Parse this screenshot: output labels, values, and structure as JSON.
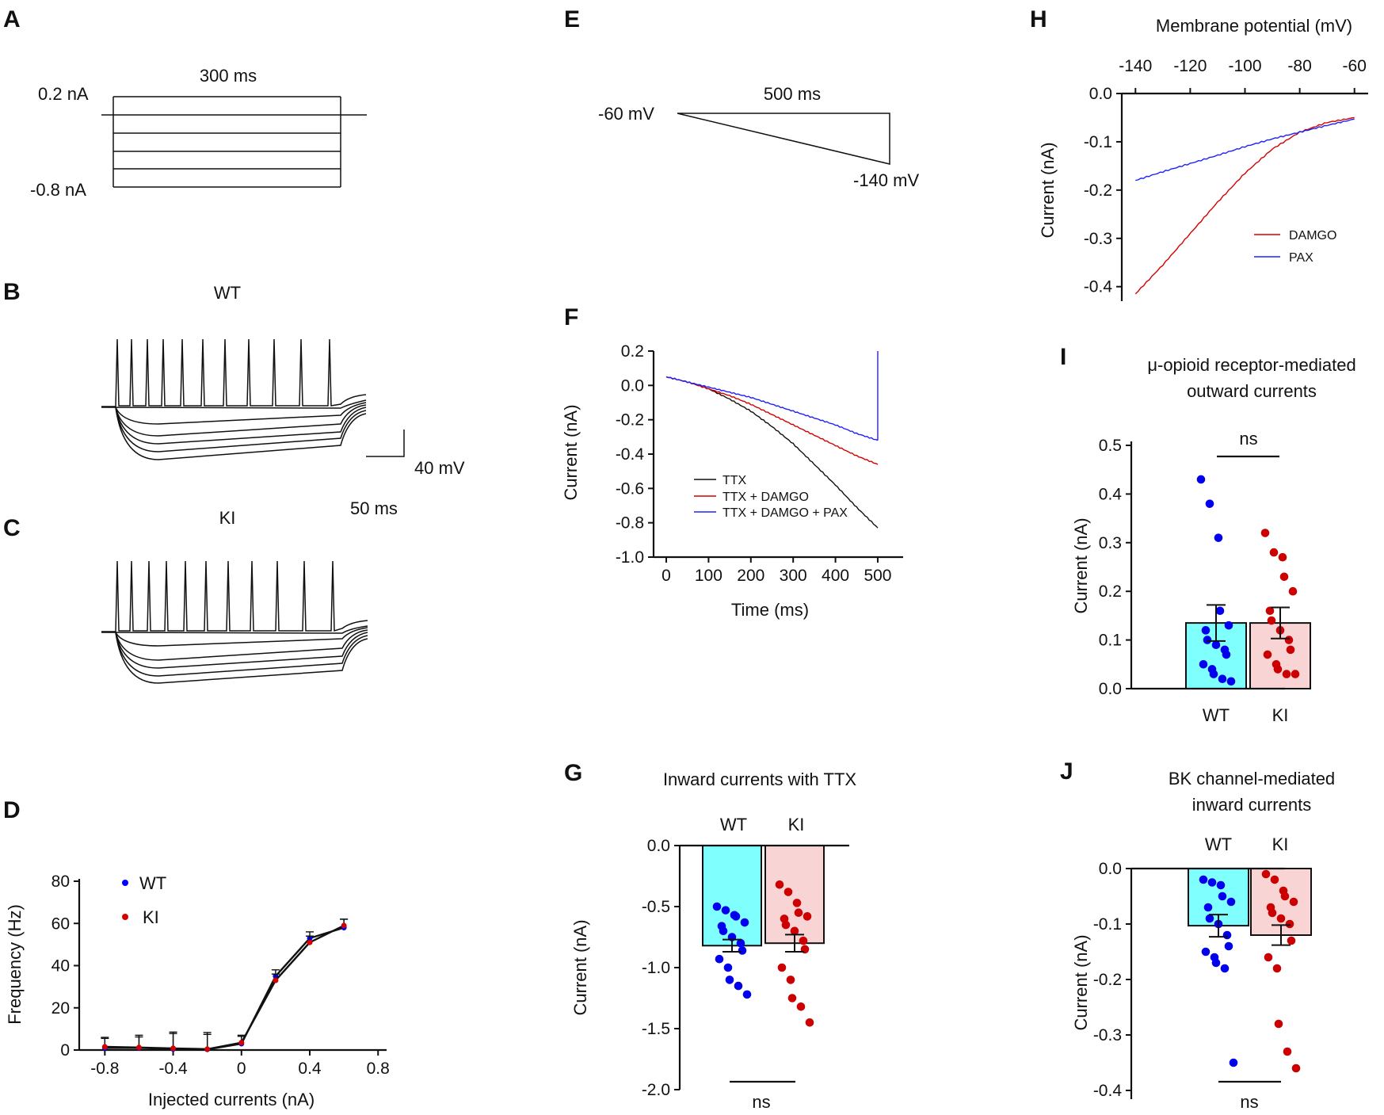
{
  "figure": {
    "panels": {
      "A": {
        "label": "A",
        "duration": "300 ms",
        "top_label": "0.2 nA",
        "bottom_label": "-0.8 nA"
      },
      "B": {
        "label": "B",
        "title": "WT"
      },
      "C": {
        "label": "C",
        "title": "KI"
      },
      "scalebar": {
        "v": "40 mV",
        "h": "50 ms"
      },
      "E": {
        "label": "E",
        "start": "-60 mV",
        "duration": "500 ms",
        "end": "-140 mV"
      },
      "D": {
        "label": "D"
      },
      "F": {
        "label": "F"
      },
      "G": {
        "label": "G"
      },
      "H": {
        "label": "H"
      },
      "I": {
        "label": "I"
      },
      "J": {
        "label": "J"
      }
    }
  },
  "chart_data": [
    {
      "id": "D",
      "type": "line",
      "xlabel": "Injected currents (nA)",
      "ylabel": "Frequency (Hz)",
      "xlim": [
        -0.95,
        0.85
      ],
      "ylim": [
        0,
        80
      ],
      "xticks": [
        -0.8,
        -0.4,
        0,
        0.4,
        0.8
      ],
      "xticklabels": [
        "-0.8",
        "-0.4",
        "0",
        "0.4",
        "0.8"
      ],
      "yticks": [
        0,
        20,
        40,
        60,
        80
      ],
      "yticklabels": [
        "0",
        "20",
        "40",
        "60",
        "80"
      ],
      "legend": [
        "WT",
        "KI"
      ],
      "series": [
        {
          "name": "WT",
          "color": "#0000ff",
          "x": [
            -0.8,
            -0.6,
            -0.4,
            -0.2,
            0,
            0.2,
            0.4,
            0.6
          ],
          "y": [
            1,
            1,
            0.5,
            0.3,
            3,
            35,
            53,
            58
          ],
          "err": [
            5,
            6,
            8,
            8,
            4,
            3,
            3,
            4
          ]
        },
        {
          "name": "KI",
          "color": "#d40000",
          "x": [
            -0.8,
            -0.6,
            -0.4,
            -0.2,
            0,
            0.2,
            0.4,
            0.6
          ],
          "y": [
            1.5,
            1.2,
            0.8,
            0.4,
            3.5,
            33,
            51,
            59
          ],
          "err": [
            4,
            5,
            7,
            7,
            3,
            3,
            3,
            3
          ]
        }
      ]
    },
    {
      "id": "F",
      "type": "line",
      "xlabel": "Time (ms)",
      "ylabel": "Current (nA)",
      "xlim": [
        -30,
        560
      ],
      "ylim": [
        -1.0,
        0.2
      ],
      "xticks": [
        0,
        100,
        200,
        300,
        400,
        500
      ],
      "xticklabels": [
        "0",
        "100",
        "200",
        "300",
        "400",
        "500"
      ],
      "yticks": [
        0.2,
        0.0,
        -0.2,
        -0.4,
        -0.6,
        -0.8,
        -1.0
      ],
      "yticklabels": [
        "0.2",
        "0.0",
        "-0.2",
        "-0.4",
        "-0.6",
        "-0.8",
        "-1.0"
      ],
      "series": [
        {
          "name": "TTX",
          "color": "#111111",
          "x": [
            0,
            50,
            100,
            150,
            200,
            250,
            300,
            350,
            400,
            450,
            500
          ],
          "y": [
            0.05,
            0.02,
            -0.02,
            -0.08,
            -0.15,
            -0.24,
            -0.34,
            -0.46,
            -0.58,
            -0.71,
            -0.83
          ]
        },
        {
          "name": "TTX + DAMGO",
          "color": "#d40000",
          "x": [
            0,
            50,
            100,
            150,
            200,
            250,
            300,
            350,
            400,
            450,
            500
          ],
          "y": [
            0.05,
            0.02,
            -0.02,
            -0.06,
            -0.11,
            -0.17,
            -0.23,
            -0.29,
            -0.35,
            -0.41,
            -0.46
          ]
        },
        {
          "name": "TTX + DAMGO + PAX",
          "color": "#2020ff",
          "x": [
            0,
            50,
            100,
            150,
            200,
            250,
            300,
            350,
            400,
            450,
            500
          ],
          "y": [
            0.05,
            0.02,
            -0.01,
            -0.04,
            -0.07,
            -0.11,
            -0.15,
            -0.19,
            -0.23,
            -0.28,
            -0.32
          ]
        }
      ]
    },
    {
      "id": "G",
      "type": "bar",
      "title": "Inward currents with TTX",
      "ylabel": "Current (nA)",
      "categories": [
        "WT",
        "KI"
      ],
      "values": [
        -0.82,
        -0.8
      ],
      "sem": [
        0.05,
        0.07
      ],
      "colors": [
        "#80ffff",
        "#f8d4d4"
      ],
      "dot_colors": [
        "#0000ee",
        "#cc0000"
      ],
      "ylim": [
        -2.0,
        0.0
      ],
      "yticks": [
        0.0,
        -0.5,
        -1.0,
        -1.5,
        -2.0
      ],
      "yticklabels": [
        "0.0",
        "-0.5",
        "-1.0",
        "-1.5",
        "-2.0"
      ],
      "points": [
        [
          -0.5,
          -0.53,
          -0.57,
          -0.58,
          -0.63,
          -0.66,
          -0.7,
          -0.75,
          -0.8,
          -0.86,
          -0.93,
          -1.0,
          -1.1,
          -1.15,
          -1.22
        ],
        [
          -0.32,
          -0.38,
          -0.47,
          -0.55,
          -0.58,
          -0.6,
          -0.65,
          -0.7,
          -0.78,
          -0.85,
          -1.0,
          -1.1,
          -1.25,
          -1.32,
          -1.45
        ]
      ],
      "significance": "ns"
    },
    {
      "id": "H",
      "type": "line",
      "xlabel": "Membrane potential (mV)",
      "ylabel": "Current (nA)",
      "xlim": [
        -145,
        -55
      ],
      "ylim": [
        -0.43,
        0.0
      ],
      "xticks": [
        -140,
        -120,
        -100,
        -80,
        -60
      ],
      "xticklabels": [
        "-140",
        "-120",
        "-100",
        "-80",
        "-60"
      ],
      "yticks": [
        0.0,
        -0.1,
        -0.2,
        -0.3,
        -0.4
      ],
      "yticklabels": [
        "0.0",
        "-0.1",
        "-0.2",
        "-0.3",
        "-0.4"
      ],
      "legend": [
        "DAMGO",
        "PAX"
      ],
      "series": [
        {
          "name": "DAMGO",
          "color": "#d40000",
          "x": [
            -140,
            -130,
            -120,
            -110,
            -100,
            -90,
            -80,
            -70,
            -60
          ],
          "y": [
            -0.415,
            -0.355,
            -0.29,
            -0.225,
            -0.165,
            -0.115,
            -0.08,
            -0.06,
            -0.05
          ]
        },
        {
          "name": "PAX",
          "color": "#2020ff",
          "x": [
            -140,
            -130,
            -120,
            -110,
            -100,
            -90,
            -80,
            -70,
            -60
          ],
          "y": [
            -0.18,
            -0.162,
            -0.145,
            -0.128,
            -0.11,
            -0.094,
            -0.08,
            -0.066,
            -0.053
          ]
        }
      ]
    },
    {
      "id": "I",
      "type": "bar",
      "title": "μ-opioid receptor-mediated outward currents",
      "ylabel": "Current (nA)",
      "title_lines": [
        "μ-opioid receptor-mediated",
        "outward currents"
      ],
      "categories": [
        "WT",
        "KI"
      ],
      "values": [
        0.135,
        0.135
      ],
      "sem": [
        0.037,
        0.032
      ],
      "colors": [
        "#80ffff",
        "#f8d4d4"
      ],
      "dot_colors": [
        "#0000ee",
        "#cc0000"
      ],
      "ylim": [
        0.0,
        0.5
      ],
      "yticks": [
        0.0,
        0.1,
        0.2,
        0.3,
        0.4,
        0.5
      ],
      "yticklabels": [
        "0.0",
        "0.1",
        "0.2",
        "0.3",
        "0.4",
        "0.5"
      ],
      "points": [
        [
          0.43,
          0.38,
          0.31,
          0.16,
          0.13,
          0.12,
          0.1,
          0.09,
          0.08,
          0.07,
          0.05,
          0.04,
          0.03,
          0.02,
          0.015
        ],
        [
          0.32,
          0.28,
          0.27,
          0.23,
          0.2,
          0.16,
          0.14,
          0.12,
          0.1,
          0.08,
          0.07,
          0.05,
          0.04,
          0.03,
          0.03
        ]
      ],
      "significance": "ns"
    },
    {
      "id": "J",
      "type": "bar",
      "title": "BK channel-mediated inward currents",
      "ylabel": "Current (nA)",
      "title_lines": [
        "BK channel-mediated",
        "inward currents"
      ],
      "categories": [
        "WT",
        "KI"
      ],
      "values": [
        -0.103,
        -0.12
      ],
      "sem": [
        0.02,
        0.018
      ],
      "colors": [
        "#80ffff",
        "#f8d4d4"
      ],
      "dot_colors": [
        "#0000ee",
        "#cc0000"
      ],
      "ylim": [
        -0.4,
        0.0
      ],
      "yticks": [
        0.0,
        -0.1,
        -0.2,
        -0.3,
        -0.4
      ],
      "yticklabels": [
        "0.0",
        "-0.1",
        "-0.2",
        "-0.3",
        "-0.4"
      ],
      "points": [
        [
          -0.02,
          -0.025,
          -0.03,
          -0.05,
          -0.06,
          -0.07,
          -0.09,
          -0.1,
          -0.12,
          -0.14,
          -0.15,
          -0.16,
          -0.17,
          -0.18,
          -0.35
        ],
        [
          -0.01,
          -0.02,
          -0.04,
          -0.05,
          -0.06,
          -0.07,
          -0.08,
          -0.09,
          -0.1,
          -0.13,
          -0.16,
          -0.18,
          -0.28,
          -0.33,
          -0.36
        ]
      ],
      "significance": "ns"
    }
  ]
}
